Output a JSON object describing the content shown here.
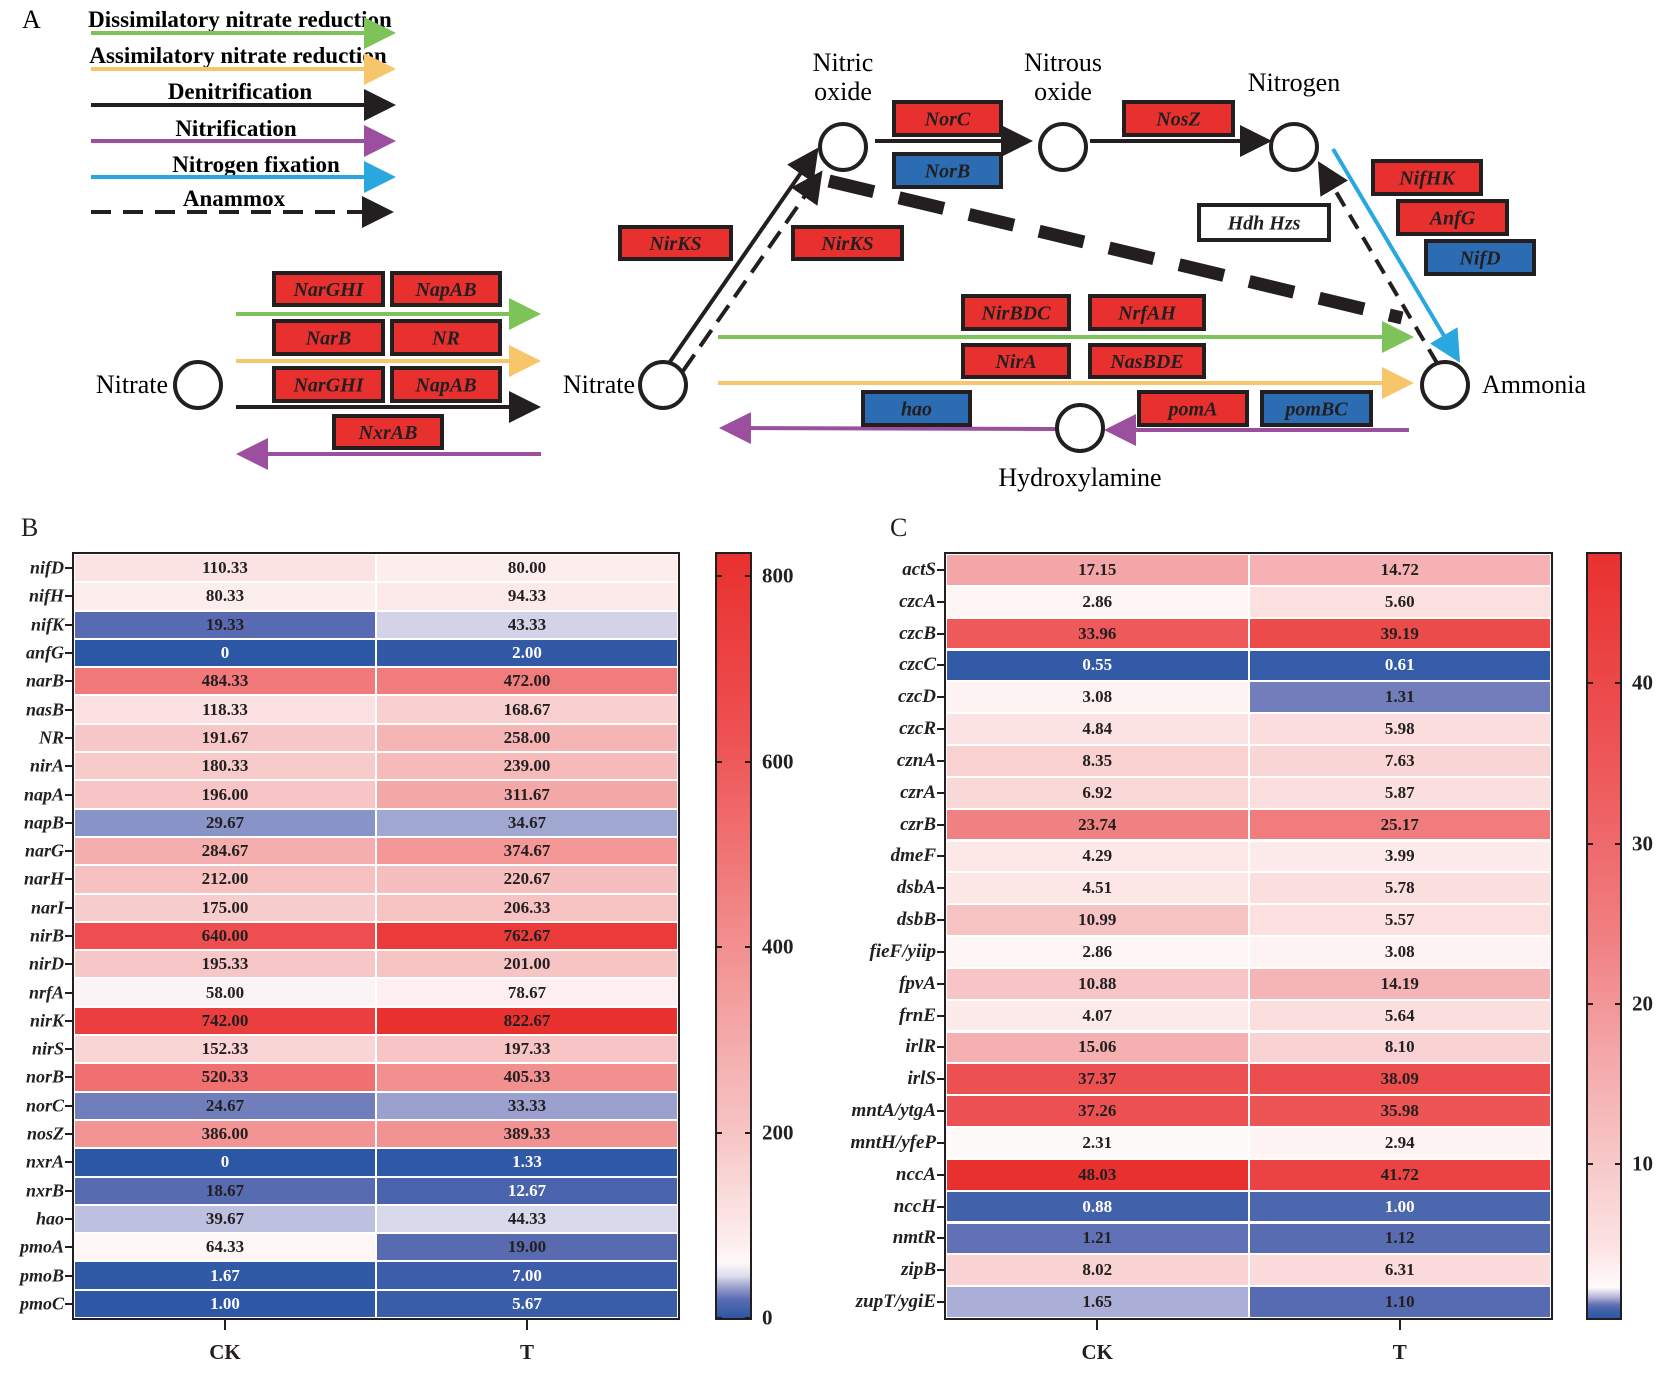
{
  "panel_a": {
    "letter": "A",
    "legend": [
      {
        "label": "Dissimilatory nitrate reduction",
        "color": "#7dc35a",
        "style": "solid"
      },
      {
        "label": "Assimilatory nitrate reduction",
        "color": "#f7c66b",
        "style": "solid"
      },
      {
        "label": "Denitrification",
        "color": "#231f20",
        "style": "solid"
      },
      {
        "label": "Nitrification",
        "color": "#9b4f9e",
        "style": "solid"
      },
      {
        "label": "Nitrogen fixation",
        "color": "#2aa7df",
        "style": "solid"
      },
      {
        "label": "Anammox",
        "color": "#231f20",
        "style": "dashed"
      }
    ],
    "nodes": {
      "nitrate_left": "Nitrate",
      "nitrate": "Nitrate",
      "nitric_oxide_1": "Nitric",
      "nitric_oxide_2": "oxide",
      "nitrous_oxide_1": "Nitrous",
      "nitrous_oxide_2": "oxide",
      "nitrogen": "Nitrogen",
      "ammonia": "Ammonia",
      "hydroxylamine": "Hydroxylamine"
    },
    "genes": {
      "narghi_1": "NarGHI",
      "napab_1": "NapAB",
      "narb": "NarB",
      "nr": "NR",
      "narghi_2": "NarGHI",
      "napab_2": "NapAB",
      "nxrab": "NxrAB",
      "norc": "NorC",
      "norb": "NorB",
      "nosz": "NosZ",
      "nirks_1": "NirKS",
      "nirks_2": "NirKS",
      "hdh_hzs": "Hdh Hzs",
      "nifhk": "NifHK",
      "anfg": "AnfG",
      "nifd": "NifD",
      "nirbdc": "NirBDC",
      "nrfah": "NrfAH",
      "nira": "NirA",
      "nasbde": "NasBDE",
      "hao": "hao",
      "poma": "pomA",
      "pombc": "pomBC"
    },
    "box_colors": {
      "up": "#e8312f",
      "down": "#2b6cb3",
      "none": "#ffffff"
    }
  },
  "chart_data": [
    {
      "type": "heatmap",
      "panel": "B",
      "columns": [
        "CK",
        "T"
      ],
      "rows": [
        "nifD",
        "nifH",
        "nifK",
        "anfG",
        "narB",
        "nasB",
        "NR",
        "nirA",
        "napA",
        "napB",
        "narG",
        "narH",
        "narI",
        "nirB",
        "nirD",
        "nrfA",
        "nirK",
        "nirS",
        "norB",
        "norC",
        "nosZ",
        "nxrA",
        "nxrB",
        "hao",
        "pmoA",
        "pmoB",
        "pmoC"
      ],
      "values": [
        [
          "110.33",
          "80.00"
        ],
        [
          "80.33",
          "94.33"
        ],
        [
          "19.33",
          "43.33"
        ],
        [
          "0",
          "2.00"
        ],
        [
          "484.33",
          "472.00"
        ],
        [
          "118.33",
          "168.67"
        ],
        [
          "191.67",
          "258.00"
        ],
        [
          "180.33",
          "239.00"
        ],
        [
          "196.00",
          "311.67"
        ],
        [
          "29.67",
          "34.67"
        ],
        [
          "284.67",
          "374.67"
        ],
        [
          "212.00",
          "220.67"
        ],
        [
          "175.00",
          "206.33"
        ],
        [
          "640.00",
          "762.67"
        ],
        [
          "195.33",
          "201.00"
        ],
        [
          "58.00",
          "78.67"
        ],
        [
          "742.00",
          "822.67"
        ],
        [
          "152.33",
          "197.33"
        ],
        [
          "520.33",
          "405.33"
        ],
        [
          "24.67",
          "33.33"
        ],
        [
          "386.00",
          "389.33"
        ],
        [
          "0",
          "1.33"
        ],
        [
          "18.67",
          "12.67"
        ],
        [
          "39.67",
          "44.33"
        ],
        [
          "64.33",
          "19.00"
        ],
        [
          "1.67",
          "7.00"
        ],
        [
          "1.00",
          "5.67"
        ]
      ],
      "colorbar": {
        "ticks": [
          "0",
          "200",
          "400",
          "600",
          "800"
        ],
        "range": [
          0,
          824
        ]
      },
      "colors": {
        "low": "#2c57a5",
        "mid": "#ffffff",
        "high": "#e8312f"
      }
    },
    {
      "type": "heatmap",
      "panel": "C",
      "columns": [
        "CK",
        "T"
      ],
      "rows": [
        "actS",
        "czcA",
        "czcB",
        "czcC",
        "czcD",
        "czcR",
        "cznA",
        "czrA",
        "czrB",
        "dmeF",
        "dsbA",
        "dsbB",
        "fieF/yiip",
        "fpvA",
        "frnE",
        "irlR",
        "irlS",
        "mntA/ytgA",
        "mntH/yfeP",
        "nccA",
        "nccH",
        "nmtR",
        "zipB",
        "zupT/ygiE"
      ],
      "values": [
        [
          "17.15",
          "14.72"
        ],
        [
          "2.86",
          "5.60"
        ],
        [
          "33.96",
          "39.19"
        ],
        [
          "0.55",
          "0.61"
        ],
        [
          "3.08",
          "1.31"
        ],
        [
          "4.84",
          "5.98"
        ],
        [
          "8.35",
          "7.63"
        ],
        [
          "6.92",
          "5.87"
        ],
        [
          "23.74",
          "25.17"
        ],
        [
          "4.29",
          "3.99"
        ],
        [
          "4.51",
          "5.78"
        ],
        [
          "10.99",
          "5.57"
        ],
        [
          "2.86",
          "3.08"
        ],
        [
          "10.88",
          "14.19"
        ],
        [
          "4.07",
          "5.64"
        ],
        [
          "15.06",
          "8.10"
        ],
        [
          "37.37",
          "38.09"
        ],
        [
          "37.26",
          "35.98"
        ],
        [
          "2.31",
          "2.94"
        ],
        [
          "48.03",
          "41.72"
        ],
        [
          "0.88",
          "1.00"
        ],
        [
          "1.21",
          "1.12"
        ],
        [
          "8.02",
          "6.31"
        ],
        [
          "1.65",
          "1.10"
        ]
      ],
      "colorbar": {
        "ticks": [
          "10",
          "20",
          "30",
          "40"
        ],
        "range": [
          0.4,
          48.06
        ]
      },
      "colors": {
        "low": "#2c57a5",
        "mid": "#ffffff",
        "high": "#e8312f"
      }
    }
  ]
}
